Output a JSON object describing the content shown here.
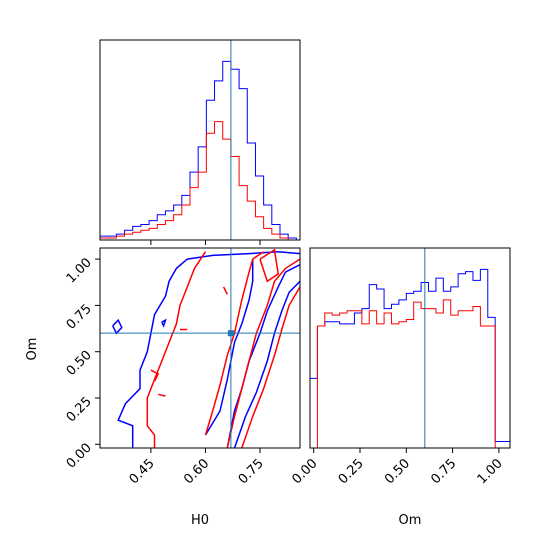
{
  "chart_data": {
    "type": "corner",
    "truth": {
      "H0": 0.67,
      "Om": 0.6
    },
    "colors": {
      "sample_a": "#0000ff",
      "sample_b": "#ff0000",
      "truth": "#1f77b4"
    },
    "panels": [
      {
        "id": "hist-h0",
        "type": "histogram",
        "xlim": [
          0.31,
          0.86
        ],
        "bins_x": [
          0.31,
          0.3325,
          0.355,
          0.3775,
          0.4,
          0.4225,
          0.445,
          0.4675,
          0.49,
          0.5125,
          0.535,
          0.5575,
          0.58,
          0.6025,
          0.625,
          0.6475,
          0.67,
          0.6925,
          0.715,
          0.7375,
          0.76,
          0.7825,
          0.805,
          0.8275,
          0.85
        ],
        "series": [
          {
            "name": "",
            "color": "#0000ff",
            "counts": [
              2,
              2,
              3,
              5,
              7,
              8,
              10,
              13,
              15,
              18,
              23,
              35,
              48,
              72,
              82,
              92,
              88,
              78,
              50,
              33,
              18,
              8,
              3,
              1
            ]
          },
          {
            "name": "",
            "color": "#ff0000",
            "counts": [
              1,
              1,
              2,
              3,
              4,
              5,
              6,
              8,
              10,
              13,
              18,
              27,
              35,
              55,
              61,
              52,
              43,
              28,
              20,
              12,
              6,
              3,
              1,
              0
            ]
          }
        ]
      },
      {
        "id": "hist-om",
        "type": "histogram",
        "xlim": [
          -0.02,
          1.06
        ],
        "bins_x": [
          -0.02,
          0.02,
          0.06,
          0.1,
          0.14,
          0.18,
          0.22,
          0.26,
          0.3,
          0.34,
          0.38,
          0.42,
          0.46,
          0.5,
          0.54,
          0.58,
          0.62,
          0.66,
          0.7,
          0.74,
          0.78,
          0.82,
          0.86,
          0.9,
          0.94,
          0.98,
          1.02,
          1.06
        ],
        "series": [
          {
            "name": "",
            "color": "#0000ff",
            "counts": [
              32,
              56,
              58,
              58,
              57,
              57,
              62,
              64,
              75,
              73,
              64,
              66,
              68,
              71,
              72,
              76,
              72,
              78,
              72,
              74,
              80,
              81,
              77,
              82,
              60,
              3,
              3
            ]
          },
          {
            "name": "",
            "color": "#ff0000",
            "counts": [
              0,
              56,
              62,
              61,
              62,
              63,
              63,
              57,
              63,
              57,
              62,
              57,
              58,
              59,
              67,
              64,
              64,
              62,
              68,
              61,
              63,
              63,
              65,
              56,
              56,
              0,
              0
            ]
          }
        ]
      },
      {
        "id": "contour-h0-om",
        "type": "contour",
        "xlim": [
          0.31,
          0.86
        ],
        "ylim": [
          -0.02,
          1.06
        ],
        "series": [
          {
            "name": "",
            "color": "#0000ff",
            "paths": [
              [
                [
                  0.4,
                  -0.02
                ],
                [
                  0.4,
                  0.1
                ],
                [
                  0.36,
                  0.13
                ],
                [
                  0.38,
                  0.22
                ],
                [
                  0.42,
                  0.3
                ],
                [
                  0.42,
                  0.4
                ],
                [
                  0.44,
                  0.5
                ],
                [
                  0.45,
                  0.6
                ],
                [
                  0.46,
                  0.7
                ],
                [
                  0.49,
                  0.8
                ],
                [
                  0.5,
                  0.88
                ],
                [
                  0.52,
                  0.95
                ],
                [
                  0.55,
                  1.0
                ],
                [
                  0.62,
                  1.02
                ],
                [
                  0.72,
                  1.03
                ],
                [
                  0.8,
                  1.04
                ],
                [
                  0.86,
                  1.03
                ]
              ],
              [
                [
                  0.6,
                  0.05
                ],
                [
                  0.64,
                  0.18
                ],
                [
                  0.66,
                  0.35
                ],
                [
                  0.67,
                  0.45
                ],
                [
                  0.68,
                  0.55
                ],
                [
                  0.7,
                  0.65
                ],
                [
                  0.72,
                  0.78
                ],
                [
                  0.73,
                  0.88
                ],
                [
                  0.73,
                  1.0
                ]
              ],
              [
                [
                  0.66,
                  -0.02
                ],
                [
                  0.68,
                  0.18
                ],
                [
                  0.7,
                  0.3
                ],
                [
                  0.72,
                  0.45
                ],
                [
                  0.75,
                  0.6
                ],
                [
                  0.77,
                  0.72
                ],
                [
                  0.8,
                  0.85
                ],
                [
                  0.82,
                  0.93
                ],
                [
                  0.86,
                  0.97
                ]
              ],
              [
                [
                  0.68,
                  -0.02
                ],
                [
                  0.71,
                  0.15
                ],
                [
                  0.74,
                  0.28
                ],
                [
                  0.77,
                  0.45
                ],
                [
                  0.79,
                  0.6
                ],
                [
                  0.81,
                  0.72
                ],
                [
                  0.83,
                  0.82
                ],
                [
                  0.86,
                  0.88
                ]
              ],
              [
                [
                  0.345,
                  0.64
                ],
                [
                  0.36,
                  0.67
                ],
                [
                  0.37,
                  0.63
                ],
                [
                  0.355,
                  0.6
                ],
                [
                  0.345,
                  0.64
                ]
              ],
              [
                [
                  0.48,
                  0.66
                ],
                [
                  0.49,
                  0.67
                ],
                [
                  0.485,
                  0.64
                ],
                [
                  0.48,
                  0.66
                ]
              ]
            ]
          },
          {
            "name": "",
            "color": "#ff0000",
            "paths": [
              [
                [
                  0.46,
                  -0.02
                ],
                [
                  0.46,
                  0.05
                ],
                [
                  0.44,
                  0.1
                ],
                [
                  0.44,
                  0.25
                ],
                [
                  0.46,
                  0.35
                ],
                [
                  0.48,
                  0.45
                ],
                [
                  0.5,
                  0.55
                ],
                [
                  0.52,
                  0.65
                ],
                [
                  0.53,
                  0.75
                ],
                [
                  0.55,
                  0.85
                ],
                [
                  0.57,
                  0.95
                ],
                [
                  0.6,
                  1.04
                ]
              ],
              [
                [
                  0.6,
                  0.05
                ],
                [
                  0.62,
                  0.18
                ],
                [
                  0.64,
                  0.32
                ],
                [
                  0.66,
                  0.48
                ],
                [
                  0.68,
                  0.6
                ],
                [
                  0.7,
                  0.78
                ],
                [
                  0.72,
                  0.93
                ],
                [
                  0.73,
                  1.0
                ],
                [
                  0.76,
                  1.04
                ]
              ],
              [
                [
                  0.66,
                  -0.02
                ],
                [
                  0.68,
                  0.15
                ],
                [
                  0.7,
                  0.3
                ],
                [
                  0.72,
                  0.45
                ],
                [
                  0.74,
                  0.6
                ],
                [
                  0.77,
                  0.75
                ],
                [
                  0.79,
                  0.88
                ],
                [
                  0.82,
                  0.95
                ],
                [
                  0.86,
                  1.0
                ]
              ],
              [
                [
                  0.7,
                  -0.02
                ],
                [
                  0.73,
                  0.15
                ],
                [
                  0.76,
                  0.3
                ],
                [
                  0.79,
                  0.48
                ],
                [
                  0.81,
                  0.62
                ],
                [
                  0.83,
                  0.75
                ],
                [
                  0.86,
                  0.85
                ]
              ],
              [
                [
                  0.75,
                  1.0
                ],
                [
                  0.79,
                  1.05
                ],
                [
                  0.8,
                  0.92
                ],
                [
                  0.77,
                  0.88
                ],
                [
                  0.75,
                  1.0
                ]
              ],
              [
                [
                  0.45,
                  0.4
                ],
                [
                  0.47,
                  0.38
                ],
                [
                  0.46,
                  0.34
                ]
              ],
              [
                [
                  0.65,
                  0.85
                ],
                [
                  0.66,
                  0.81
                ]
              ],
              [
                [
                  0.53,
                  0.62
                ],
                [
                  0.55,
                  0.62
                ]
              ],
              [
                [
                  0.47,
                  0.27
                ],
                [
                  0.49,
                  0.26
                ]
              ]
            ]
          }
        ]
      }
    ],
    "axes": {
      "h0": {
        "label": "H0",
        "ticks": [
          0.45,
          0.6,
          0.75
        ],
        "tick_labels": [
          "0.45",
          "0.60",
          "0.75"
        ]
      },
      "om_y": {
        "label": "Om",
        "ticks": [
          0.0,
          0.25,
          0.5,
          0.75,
          1.0
        ],
        "tick_labels": [
          "0.00",
          "0.25",
          "0.50",
          "0.75",
          "1.00"
        ]
      },
      "om_x": {
        "label": "Om",
        "ticks": [
          0.0,
          0.25,
          0.5,
          0.75,
          1.0
        ],
        "tick_labels": [
          "0.00",
          "0.25",
          "0.50",
          "0.75",
          "1.00"
        ]
      }
    }
  }
}
